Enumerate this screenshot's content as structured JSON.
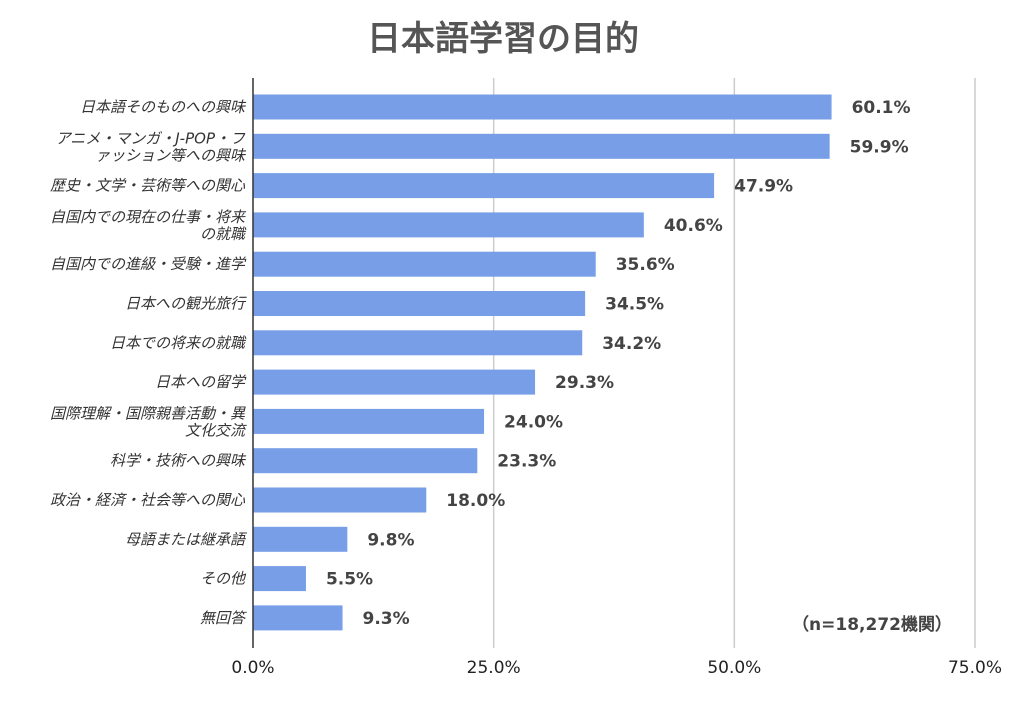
{
  "chart_data": {
    "type": "bar",
    "orientation": "horizontal",
    "title": "日本語学習の目的",
    "categories": [
      [
        "日本語そのものへの興味"
      ],
      [
        "アニメ・マンガ・J-POP・フ",
        "ァッション等への興味"
      ],
      [
        "歴史・文学・芸術等への関心"
      ],
      [
        "自国内での現在の仕事・将来",
        "の就職"
      ],
      [
        "自国内での進級・受験・進学"
      ],
      [
        "日本への観光旅行"
      ],
      [
        "日本での将来の就職"
      ],
      [
        "日本への留学"
      ],
      [
        "国際理解・国際親善活動・異",
        "文化交流"
      ],
      [
        "科学・技術への興味"
      ],
      [
        "政治・経済・社会等への関心"
      ],
      [
        "母語または継承語"
      ],
      [
        "その他"
      ],
      [
        "無回答"
      ]
    ],
    "values": [
      60.1,
      59.9,
      47.9,
      40.6,
      35.6,
      34.5,
      34.2,
      29.3,
      24.0,
      23.3,
      18.0,
      9.8,
      5.5,
      9.3
    ],
    "value_labels": [
      "60.1%",
      "59.9%",
      "47.9%",
      "40.6%",
      "35.6%",
      "34.5%",
      "34.2%",
      "29.3%",
      "24.0%",
      "23.3%",
      "18.0%",
      "9.8%",
      "5.5%",
      "9.3%"
    ],
    "xlim": [
      0,
      75
    ],
    "x_ticks": [
      0,
      25,
      50,
      75
    ],
    "x_tick_labels": [
      "0.0%",
      "25.0%",
      "50.0%",
      "75.0%"
    ],
    "grid": true,
    "note": "（n=18,272機関）",
    "colors": {
      "bar": "#779ee6",
      "grid": "#cccccc",
      "axis": "#333333"
    }
  }
}
